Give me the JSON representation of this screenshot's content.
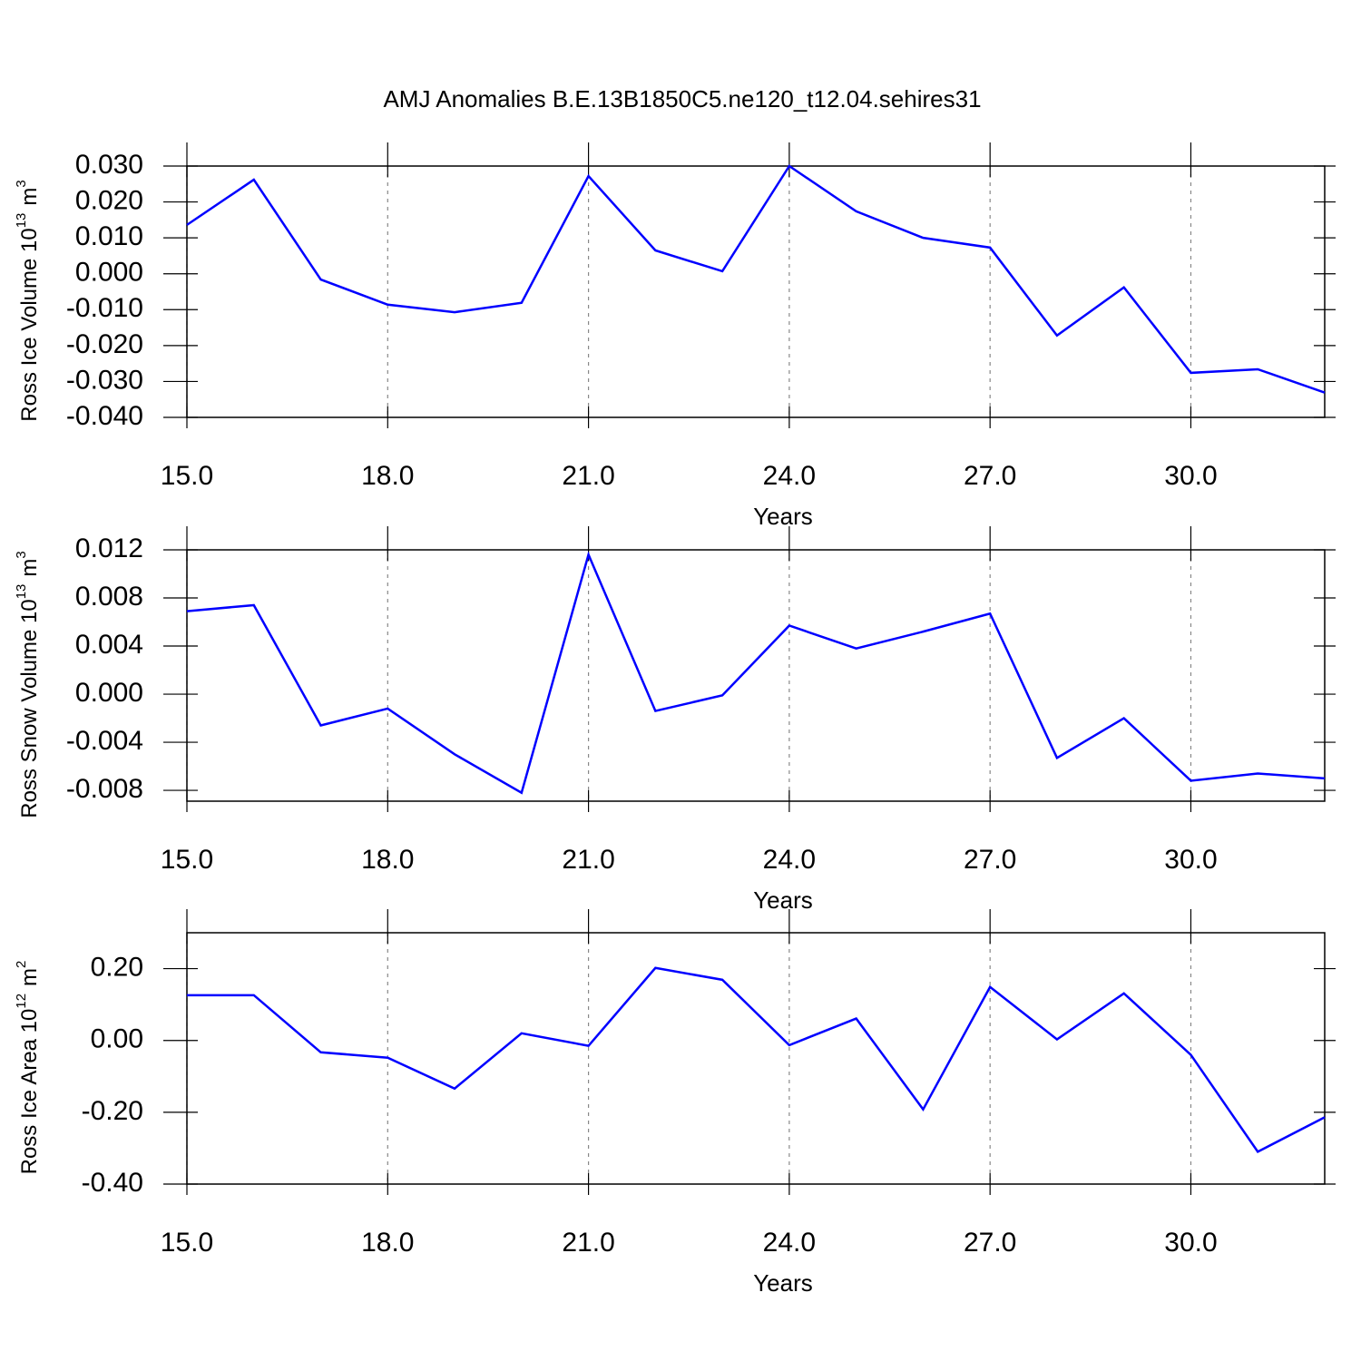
{
  "chart_data": [
    {
      "type": "line",
      "title": "AMJ Anomalies B.E.13B1850C5.ne120_t12.04.sehires31",
      "xlabel": "Years",
      "ylabel": {
        "text": "Ross Ice Volume 10",
        "exp": "13",
        "unit": "m",
        "unit_exp": "3"
      },
      "x": [
        15,
        16,
        17,
        18,
        19,
        20,
        21,
        22,
        23,
        24,
        25,
        26,
        27,
        28,
        29,
        30,
        31,
        32
      ],
      "series": [
        {
          "color": "#0000ff",
          "values": [
            0.0136,
            0.0262,
            -0.0016,
            -0.0086,
            -0.0107,
            -0.0081,
            0.0272,
            0.0065,
            0.0007,
            0.03,
            0.0174,
            0.01,
            0.0073,
            -0.0172,
            -0.0038,
            -0.0276,
            -0.0266,
            -0.0331
          ]
        }
      ],
      "xlim": [
        15,
        32
      ],
      "xticks": [
        {
          "value": 15,
          "label": "15.0"
        },
        {
          "value": 18,
          "label": "18.0"
        },
        {
          "value": 21,
          "label": "21.0"
        },
        {
          "value": 24,
          "label": "24.0"
        },
        {
          "value": 27,
          "label": "27.0"
        },
        {
          "value": 30,
          "label": "30.0"
        }
      ],
      "ylim": [
        -0.04,
        0.03
      ],
      "yticks": [
        {
          "value": 0.03,
          "label": "0.030"
        },
        {
          "value": 0.02,
          "label": "0.020"
        },
        {
          "value": 0.01,
          "label": "0.010"
        },
        {
          "value": 0,
          "label": "0.000"
        },
        {
          "value": -0.01,
          "label": "-0.010"
        },
        {
          "value": -0.02,
          "label": "-0.020"
        },
        {
          "value": -0.03,
          "label": "-0.030"
        },
        {
          "value": -0.04,
          "label": "-0.040"
        }
      ],
      "grid": "x-dashed"
    },
    {
      "type": "line",
      "xlabel": "Years",
      "ylabel": {
        "text": "Ross Snow Volume 10",
        "exp": "13",
        "unit": "m",
        "unit_exp": "3"
      },
      "x": [
        15,
        16,
        17,
        18,
        19,
        20,
        21,
        22,
        23,
        24,
        25,
        26,
        27,
        28,
        29,
        30,
        31,
        32
      ],
      "series": [
        {
          "color": "#0000ff",
          "values": [
            0.0069,
            0.0074,
            -0.0026,
            -0.0012,
            -0.005,
            -0.0082,
            0.0116,
            -0.0014,
            -0.0001,
            0.0057,
            0.0038,
            0.0052,
            0.0067,
            -0.0053,
            -0.002,
            -0.0072,
            -0.0066,
            -0.007
          ]
        }
      ],
      "xlim": [
        15,
        32
      ],
      "xticks": [
        {
          "value": 15,
          "label": "15.0"
        },
        {
          "value": 18,
          "label": "18.0"
        },
        {
          "value": 21,
          "label": "21.0"
        },
        {
          "value": 24,
          "label": "24.0"
        },
        {
          "value": 27,
          "label": "27.0"
        },
        {
          "value": 30,
          "label": "30.0"
        }
      ],
      "ylim": [
        -0.0089,
        0.012
      ],
      "yticks": [
        {
          "value": 0.012,
          "label": "0.012"
        },
        {
          "value": 0.008,
          "label": "0.008"
        },
        {
          "value": 0.004,
          "label": "0.004"
        },
        {
          "value": 0,
          "label": "0.000"
        },
        {
          "value": -0.004,
          "label": "-0.004"
        },
        {
          "value": -0.008,
          "label": "-0.008"
        }
      ],
      "grid": "x-dashed"
    },
    {
      "type": "line",
      "xlabel": "Years",
      "ylabel": {
        "text": "Ross Ice Area 10",
        "exp": "12",
        "unit": "m",
        "unit_exp": "2"
      },
      "x": [
        15,
        16,
        17,
        18,
        19,
        20,
        21,
        22,
        23,
        24,
        25,
        26,
        27,
        28,
        29,
        30,
        31,
        32
      ],
      "series": [
        {
          "color": "#0000ff",
          "values": [
            0.126,
            0.126,
            -0.033,
            -0.048,
            -0.134,
            0.02,
            -0.015,
            0.202,
            0.169,
            -0.013,
            0.061,
            -0.192,
            0.149,
            0.003,
            0.131,
            -0.04,
            -0.31,
            -0.214
          ]
        }
      ],
      "xlim": [
        15,
        32
      ],
      "xticks": [
        {
          "value": 15,
          "label": "15.0"
        },
        {
          "value": 18,
          "label": "18.0"
        },
        {
          "value": 21,
          "label": "21.0"
        },
        {
          "value": 24,
          "label": "24.0"
        },
        {
          "value": 27,
          "label": "27.0"
        },
        {
          "value": 30,
          "label": "30.0"
        }
      ],
      "ylim": [
        -0.4,
        0.3
      ],
      "yticks": [
        {
          "value": 0.2,
          "label": "0.20"
        },
        {
          "value": 0,
          "label": "0.00"
        },
        {
          "value": -0.2,
          "label": "-0.20"
        },
        {
          "value": -0.4,
          "label": "-0.40"
        }
      ],
      "grid": "x-dashed"
    }
  ]
}
